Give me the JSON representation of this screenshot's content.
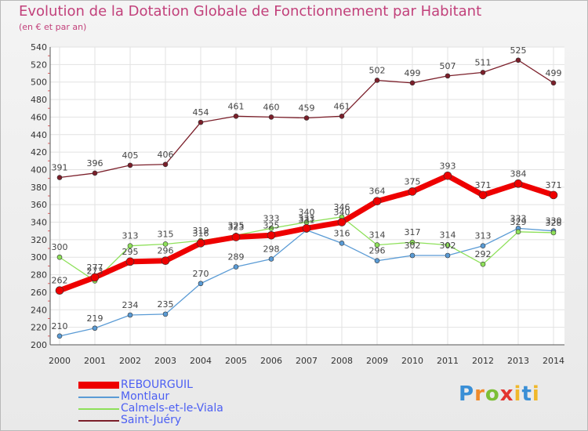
{
  "chart_data": {
    "type": "line",
    "title": "Evolution de la Dotation Globale de Fonctionnement par Habitant",
    "subtitle": "(en € et par an)",
    "xlabel": "",
    "ylabel": "",
    "x": [
      "2000",
      "2001",
      "2002",
      "2003",
      "2004",
      "2005",
      "2006",
      "2007",
      "2008",
      "2009",
      "2010",
      "2011",
      "2012",
      "2013",
      "2014"
    ],
    "ylim": [
      200,
      540
    ],
    "yticks": [
      200,
      220,
      240,
      260,
      280,
      300,
      320,
      340,
      360,
      380,
      400,
      420,
      440,
      460,
      480,
      500,
      520,
      540
    ],
    "grid": true,
    "legend_position": "bottom-left",
    "series": [
      {
        "name": "Saint-Juéry",
        "color": "#7b1f2a",
        "values": [
          391,
          396,
          405,
          406,
          454,
          461,
          460,
          459,
          461,
          502,
          499,
          507,
          511,
          525,
          499
        ]
      },
      {
        "name": "Montlaur",
        "color": "#5a9bd5",
        "values": [
          210,
          219,
          234,
          235,
          270,
          289,
          298,
          331,
          316,
          296,
          302,
          302,
          313,
          333,
          330
        ]
      },
      {
        "name": "Calmels-et-le-Viala",
        "color": "#8ee05a",
        "values": [
          300,
          273,
          313,
          315,
          319,
          325,
          333,
          340,
          346,
          314,
          317,
          314,
          292,
          329,
          328
        ]
      },
      {
        "name": "REBOURGUIL",
        "color": "#ee0000",
        "values": [
          262,
          277,
          295,
          296,
          316,
          323,
          325,
          333,
          340,
          364,
          375,
          393,
          371,
          384,
          371
        ]
      }
    ],
    "legend_order": [
      "REBOURGUIL",
      "Montlaur",
      "Calmels-et-le-Viala",
      "Saint-Juéry"
    ]
  },
  "logo": {
    "p": "P",
    "r": "r",
    "o": "o",
    "x": "x",
    "i1": "i",
    "t": "t",
    "i2": "i"
  }
}
